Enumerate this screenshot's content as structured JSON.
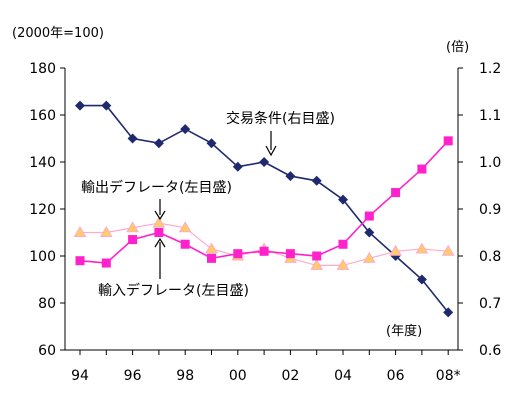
{
  "chart_data": {
    "type": "line",
    "left_unit": "(2000年=100)",
    "right_unit": "(倍)",
    "x_unit": "(年度)",
    "x_ticks": [
      "94",
      "96",
      "98",
      "00",
      "02",
      "04",
      "06",
      "08*"
    ],
    "y_left_ticks": [
      "60",
      "80",
      "100",
      "120",
      "140",
      "160",
      "180"
    ],
    "y_right_ticks": [
      "0.6",
      "0.7",
      "0.8",
      "0.9",
      "1.0",
      "1.1",
      "1.2"
    ],
    "y_left_range": [
      60,
      180
    ],
    "y_right_range": [
      0.6,
      1.2
    ],
    "grid": false,
    "x": [
      "1994",
      "1995",
      "1996",
      "1997",
      "1998",
      "1999",
      "2000",
      "2001",
      "2002",
      "2003",
      "2004",
      "2005",
      "2006",
      "2007",
      "2008*"
    ],
    "series": [
      {
        "name": "交易条件",
        "axis": "right",
        "color": "#1f2a6e",
        "marker": "diamond",
        "values": [
          1.12,
          1.12,
          1.05,
          1.04,
          1.07,
          1.04,
          0.99,
          1.0,
          0.97,
          0.96,
          0.92,
          0.85,
          0.8,
          0.75,
          0.68
        ]
      },
      {
        "name": "輸出デフレータ",
        "axis": "left",
        "color": "#ffaacc",
        "marker": "triangle",
        "marker_fill": "#ffcc66",
        "values": [
          110,
          110,
          112,
          114,
          112,
          103,
          100,
          103,
          99,
          96,
          96,
          99,
          102,
          103,
          102
        ]
      },
      {
        "name": "輸入デフレータ",
        "axis": "left",
        "color": "#ff22cc",
        "marker": "square",
        "values": [
          98,
          97,
          107,
          110,
          105,
          99,
          101,
          102,
          101,
          100,
          105,
          117,
          127,
          137,
          149
        ]
      }
    ],
    "annotations": [
      {
        "text": "交易条件(右目盛)",
        "series": 0
      },
      {
        "text": "輸出デフレータ(左目盛)",
        "series": 1
      },
      {
        "text": "輸入デフレータ(左目盛)",
        "series": 2
      }
    ]
  }
}
